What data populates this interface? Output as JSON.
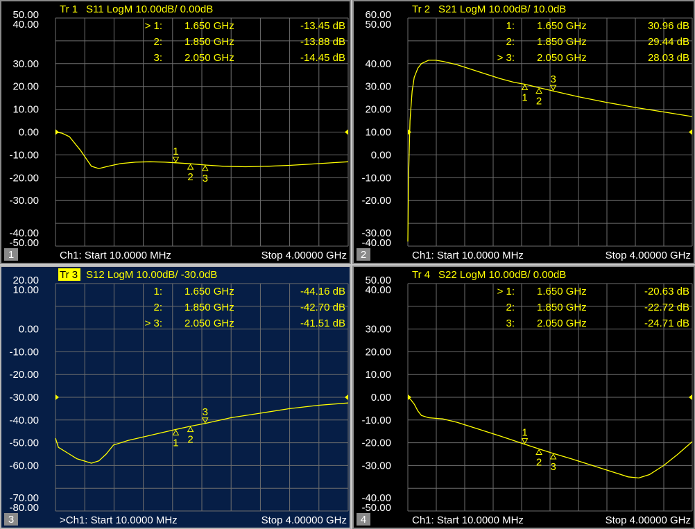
{
  "colors": {
    "trace": "#ffff00",
    "grid": "#6e6e6e",
    "text": "#ffffff",
    "active_bg": "#061e46"
  },
  "chart_data": [
    {
      "type": "line",
      "trace_label": "Tr 1",
      "title": "S11 LogM 10.00dB/  0.00dB",
      "ylim": [
        -50,
        50
      ],
      "y_ticks": [
        "50.00",
        "40.00",
        "30.00",
        "20.00",
        "10.00",
        "0.00",
        "-10.00",
        "-20.00",
        "-30.00",
        "-40.00",
        "-50.00"
      ],
      "x_range_ghz": [
        0.01,
        4.0
      ],
      "grid": true,
      "reference_level": 0,
      "markers": [
        {
          "n": "1",
          "label": "> 1:",
          "freq": "1.650 GHz",
          "freq_ghz": 1.65,
          "value": "-13.45 dB",
          "db": -13.45
        },
        {
          "n": "2",
          "label": "2:",
          "freq": "1.850 GHz",
          "freq_ghz": 1.85,
          "value": "-13.88 dB",
          "db": -13.88
        },
        {
          "n": "3",
          "label": "3:",
          "freq": "2.050 GHz",
          "freq_ghz": 2.05,
          "value": "-14.45 dB",
          "db": -14.45
        }
      ],
      "series": [
        {
          "x": [
            0.01,
            0.1,
            0.2,
            0.35,
            0.5,
            0.6,
            0.75,
            0.9,
            1.1,
            1.3,
            1.5,
            1.65,
            1.85,
            2.05,
            2.3,
            2.6,
            2.9,
            3.2,
            3.5,
            3.8,
            4.0
          ],
          "y": [
            0,
            -0.5,
            -2,
            -8,
            -15,
            -16,
            -14.8,
            -13.8,
            -13.2,
            -13.0,
            -13.2,
            -13.45,
            -13.88,
            -14.45,
            -15,
            -15.2,
            -15.0,
            -14.6,
            -14.0,
            -13.4,
            -13.0
          ]
        }
      ],
      "footer": {
        "panel_index": "1",
        "start": "Ch1:  Start  10.0000 MHz",
        "stop": "Stop  4.00000 GHz"
      }
    },
    {
      "type": "line",
      "trace_label": "Tr 2",
      "title": "S21 LogM 10.00dB/  10.0dB",
      "ylim": [
        -40,
        60
      ],
      "y_ticks": [
        "60.00",
        "50.00",
        "40.00",
        "30.00",
        "20.00",
        "10.00",
        "0.00",
        "-10.00",
        "-20.00",
        "-30.00",
        "-40.00"
      ],
      "x_range_ghz": [
        0.01,
        4.0
      ],
      "grid": true,
      "reference_level": 10,
      "markers": [
        {
          "n": "1",
          "label": "1:",
          "freq": "1.650 GHz",
          "freq_ghz": 1.65,
          "value": "30.96 dB",
          "db": 30.96
        },
        {
          "n": "2",
          "label": "2:",
          "freq": "1.850 GHz",
          "freq_ghz": 1.85,
          "value": "29.44 dB",
          "db": 29.44
        },
        {
          "n": "3",
          "label": "> 3:",
          "freq": "2.050 GHz",
          "freq_ghz": 2.05,
          "value": "28.03 dB",
          "db": 28.03
        }
      ],
      "series": [
        {
          "x": [
            0.01,
            0.02,
            0.04,
            0.07,
            0.1,
            0.15,
            0.2,
            0.3,
            0.4,
            0.5,
            0.7,
            0.9,
            1.1,
            1.3,
            1.5,
            1.65,
            1.85,
            2.05,
            2.4,
            2.8,
            3.2,
            3.6,
            4.0
          ],
          "y": [
            -38,
            -10,
            15,
            28,
            34,
            38,
            40,
            41.5,
            41.5,
            41,
            39.5,
            37.5,
            35.5,
            33.5,
            31.8,
            30.96,
            29.44,
            28.03,
            25.5,
            23.0,
            20.8,
            18.8,
            16.8
          ]
        }
      ],
      "footer": {
        "panel_index": "2",
        "start": "Ch1:  Start  10.0000 MHz",
        "stop": "Stop  4.00000 GHz"
      }
    },
    {
      "type": "line",
      "trace_label": "Tr 3",
      "title": "S12 LogM 10.00dB/  -30.0dB",
      "ylim": [
        -80,
        20
      ],
      "y_ticks": [
        "20.00",
        "10.00",
        "0.00",
        "-10.00",
        "-20.00",
        "-30.00",
        "-40.00",
        "-50.00",
        "-60.00",
        "-70.00",
        "-80.00"
      ],
      "x_range_ghz": [
        0.01,
        4.0
      ],
      "grid": true,
      "reference_level": -30,
      "markers": [
        {
          "n": "1",
          "label": "1:",
          "freq": "1.650 GHz",
          "freq_ghz": 1.65,
          "value": "-44.16 dB",
          "db": -44.16
        },
        {
          "n": "2",
          "label": "2:",
          "freq": "1.850 GHz",
          "freq_ghz": 1.85,
          "value": "-42.70 dB",
          "db": -42.7
        },
        {
          "n": "3",
          "label": "> 3:",
          "freq": "2.050 GHz",
          "freq_ghz": 2.05,
          "value": "-41.51 dB",
          "db": -41.51
        }
      ],
      "series": [
        {
          "x": [
            0.01,
            0.05,
            0.1,
            0.2,
            0.3,
            0.4,
            0.5,
            0.6,
            0.7,
            0.8,
            1.0,
            1.2,
            1.4,
            1.65,
            1.85,
            2.05,
            2.4,
            2.8,
            3.2,
            3.6,
            4.0
          ],
          "y": [
            -48,
            -52,
            -53,
            -55,
            -57,
            -58,
            -59,
            -58,
            -55,
            -51,
            -49,
            -47.5,
            -46,
            -44.16,
            -42.7,
            -41.51,
            -39,
            -37,
            -35,
            -33.5,
            -32.5
          ]
        }
      ],
      "footer": {
        "panel_index": "3",
        "start": ">Ch1:  Start  10.0000 MHz",
        "stop": "Stop  4.00000 GHz"
      }
    },
    {
      "type": "line",
      "trace_label": "Tr 4",
      "title": "S22 LogM 10.00dB/  0.00dB",
      "ylim": [
        -50,
        50
      ],
      "y_ticks": [
        "50.00",
        "40.00",
        "30.00",
        "20.00",
        "10.00",
        "0.00",
        "-10.00",
        "-20.00",
        "-30.00",
        "-40.00",
        "-50.00"
      ],
      "x_range_ghz": [
        0.01,
        4.0
      ],
      "grid": true,
      "reference_level": 0,
      "markers": [
        {
          "n": "1",
          "label": "> 1:",
          "freq": "1.650 GHz",
          "freq_ghz": 1.65,
          "value": "-20.63 dB",
          "db": -20.63
        },
        {
          "n": "2",
          "label": "2:",
          "freq": "1.850 GHz",
          "freq_ghz": 1.85,
          "value": "-22.72 dB",
          "db": -22.72
        },
        {
          "n": "3",
          "label": "3:",
          "freq": "2.050 GHz",
          "freq_ghz": 2.05,
          "value": "-24.71 dB",
          "db": -24.71
        }
      ],
      "series": [
        {
          "x": [
            0.01,
            0.05,
            0.1,
            0.15,
            0.2,
            0.3,
            0.5,
            0.7,
            1.0,
            1.3,
            1.65,
            1.85,
            2.05,
            2.3,
            2.6,
            2.9,
            3.1,
            3.25,
            3.4,
            3.6,
            3.8,
            4.0
          ],
          "y": [
            0,
            -1,
            -3,
            -6,
            -8,
            -9,
            -9.5,
            -11,
            -14,
            -17,
            -20.63,
            -22.72,
            -24.71,
            -27,
            -30,
            -33,
            -35,
            -35.5,
            -34,
            -30,
            -25,
            -19.5
          ]
        }
      ],
      "footer": {
        "panel_index": "4",
        "start": "Ch1:  Start  10.0000 MHz",
        "stop": "Stop  4.00000 GHz"
      }
    }
  ]
}
